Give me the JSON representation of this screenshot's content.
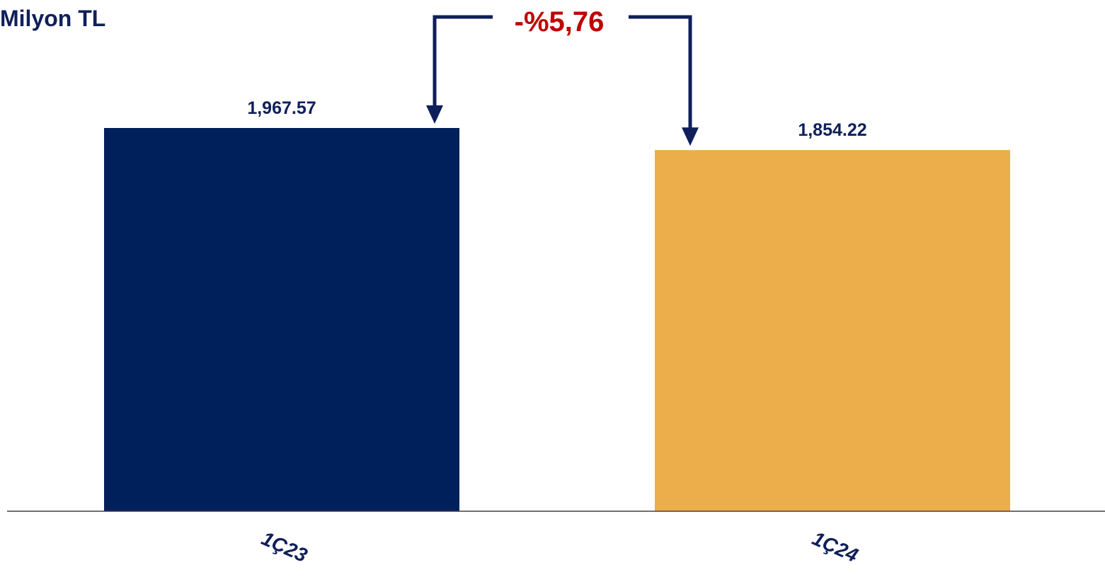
{
  "chart_data": {
    "type": "bar",
    "unit_label": "Milyon TL",
    "categories": [
      "1Ç23",
      "1Ç24"
    ],
    "values": [
      1967.57,
      1854.22
    ],
    "value_labels": [
      "1,967.57",
      "1,854.22"
    ],
    "annotation": {
      "text": "-%5,76"
    },
    "ylim": [
      0,
      2000
    ],
    "grid": false,
    "colors": {
      "bars": [
        "#00205B",
        "#ECAE4A"
      ],
      "text": "#0E1F5B",
      "annotation_text": "#C00000",
      "arrow": "#0E1F5B",
      "axis": "#404040"
    }
  }
}
